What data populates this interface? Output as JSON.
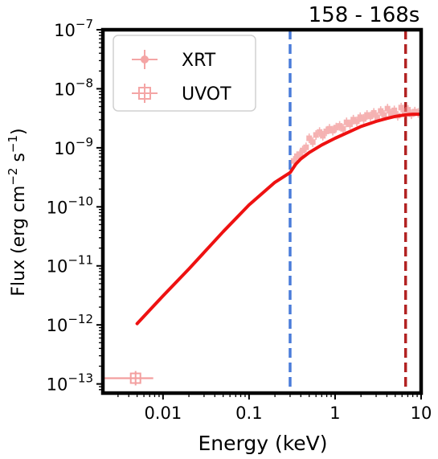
{
  "chart_data": {
    "type": "scatter",
    "title": "158 - 168s",
    "xlabel": "Energy (keV)",
    "ylabel": "Flux (erg cm$^{-2}$ s$^{-1}$)",
    "x_scale": "log",
    "y_scale": "log",
    "xlim": [
      0.002,
      10
    ],
    "ylim": [
      7e-14,
      1e-07
    ],
    "x_ticks": [
      {
        "value": 0.01,
        "label": "0.01"
      },
      {
        "value": 0.1,
        "label": "0.1"
      },
      {
        "value": 1,
        "label": "1"
      },
      {
        "value": 10,
        "label": "10"
      }
    ],
    "y_ticks": [
      {
        "value": 1e-13,
        "exp": "-13"
      },
      {
        "value": 1e-12,
        "exp": "-12"
      },
      {
        "value": 1e-11,
        "exp": "-11"
      },
      {
        "value": 1e-10,
        "exp": "-10"
      },
      {
        "value": 1e-09,
        "exp": "-9"
      },
      {
        "value": 1e-08,
        "exp": "-8"
      },
      {
        "value": 1e-07,
        "exp": "-7"
      }
    ],
    "tick_base": "10",
    "grid": false,
    "legend": {
      "position": "top-left",
      "entries": [
        {
          "name": "XRT",
          "marker": "filled-point-with-errorbars"
        },
        {
          "name": "UVOT",
          "marker": "open-square-with-errorbars"
        }
      ]
    },
    "colors": {
      "data": "#f08080",
      "model": "#ee1111",
      "vline_low": "#4a7cd9",
      "vline_high": "#b22222",
      "axes": "#000000"
    },
    "series": [
      {
        "name": "XRT",
        "kind": "points",
        "x": [
          0.33,
          0.36,
          0.39,
          0.42,
          0.46,
          0.5,
          0.55,
          0.6,
          0.66,
          0.72,
          0.79,
          0.86,
          0.94,
          1.03,
          1.13,
          1.24,
          1.36,
          1.49,
          1.63,
          1.79,
          1.96,
          2.15,
          2.35,
          2.58,
          2.82,
          3.09,
          3.39,
          3.71,
          4.07,
          4.46,
          4.88,
          5.35,
          5.86,
          6.42,
          7.04,
          7.71,
          8.45,
          9.25
        ],
        "y": [
          6e-10,
          7.2e-10,
          7.8e-10,
          9e-10,
          1.02e-09,
          1.45e-09,
          1.25e-09,
          1.65e-09,
          1.85e-09,
          1.6e-09,
          1.9e-09,
          2.1e-09,
          1.95e-09,
          2.2e-09,
          2.35e-09,
          2.1e-09,
          2.7e-09,
          2.5e-09,
          3e-09,
          2.8e-09,
          3.3e-09,
          3.1e-09,
          3.6e-09,
          3.4e-09,
          3.9e-09,
          3.3e-09,
          4.2e-09,
          3.6e-09,
          4.6e-09,
          3.8e-09,
          4.3e-09,
          3.5e-09,
          4.8e-09,
          3.9e-09,
          4.4e-09,
          3.7e-09,
          4.1e-09,
          3.9e-09
        ]
      },
      {
        "name": "UVOT",
        "kind": "open-square",
        "x": [
          0.0048
        ],
        "y": [
          1.25e-13
        ],
        "x_err_low": [
          0.0028
        ],
        "x_err_high": [
          0.0029
        ]
      },
      {
        "name": "model",
        "kind": "line",
        "x": [
          0.005,
          0.01,
          0.02,
          0.05,
          0.1,
          0.2,
          0.3,
          0.35,
          0.4,
          0.5,
          0.7,
          1,
          1.5,
          2,
          3,
          4,
          5,
          6,
          7,
          8,
          9,
          10
        ],
        "y": [
          1.05e-12,
          3.1e-12,
          8.9e-12,
          3.8e-11,
          1.08e-10,
          2.6e-10,
          3.8e-10,
          5.3e-10,
          6.5e-10,
          8.3e-10,
          1.12e-09,
          1.45e-09,
          1.9e-09,
          2.3e-09,
          2.8e-09,
          3.15e-09,
          3.4e-09,
          3.55e-09,
          3.65e-09,
          3.7e-09,
          3.7e-09,
          3.7e-09
        ]
      }
    ],
    "vlines": [
      {
        "x": 0.3,
        "style": "dashed",
        "color": "#4a7cd9"
      },
      {
        "x": 6.6,
        "style": "dashed",
        "color": "#b22222"
      }
    ]
  }
}
